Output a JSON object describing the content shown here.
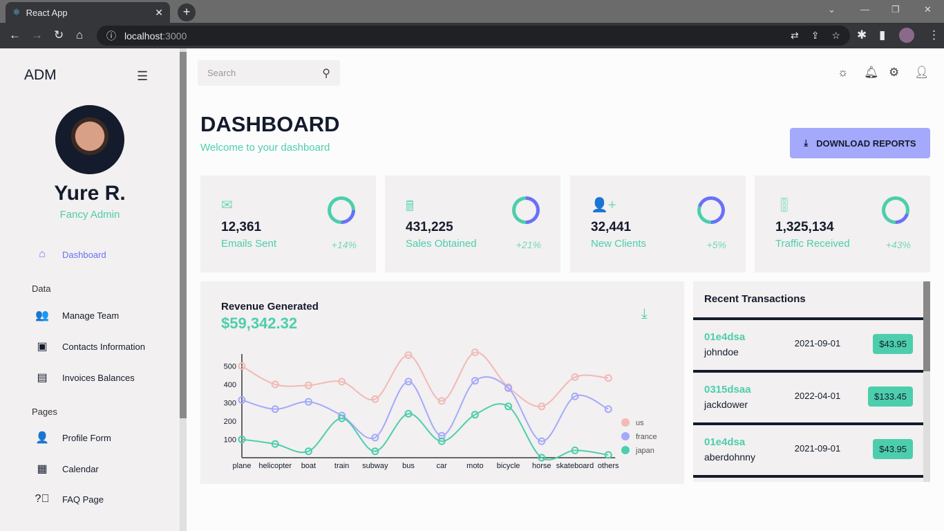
{
  "browser": {
    "tab_title": "React App",
    "url_host": "localhost",
    "url_port": ":3000"
  },
  "sidebar": {
    "logo": "ADM",
    "user_name": "Yure R.",
    "user_role": "Fancy Admin",
    "items": [
      {
        "label": "Dashboard",
        "icon": "home-icon"
      }
    ],
    "sections": [
      {
        "title": "Data",
        "items": [
          {
            "label": "Manage Team",
            "icon": "people-icon"
          },
          {
            "label": "Contacts Information",
            "icon": "contacts-icon"
          },
          {
            "label": "Invoices Balances",
            "icon": "receipt-icon"
          }
        ]
      },
      {
        "title": "Pages",
        "items": [
          {
            "label": "Profile Form",
            "icon": "person-icon"
          },
          {
            "label": "Calendar",
            "icon": "calendar-icon"
          },
          {
            "label": "FAQ Page",
            "icon": "help-icon"
          }
        ]
      }
    ]
  },
  "topbar": {
    "search_placeholder": "Search"
  },
  "header": {
    "title": "DASHBOARD",
    "subtitle": "Welcome to your dashboard",
    "download_label": "DOWNLOAD REPORTS"
  },
  "stats": [
    {
      "value": "12,361",
      "label": "Emails Sent",
      "increase": "+14%",
      "progress": 0.75
    },
    {
      "value": "431,225",
      "label": "Sales Obtained",
      "increase": "+21%",
      "progress": 0.5
    },
    {
      "value": "32,441",
      "label": "New Clients",
      "increase": "+5%",
      "progress": 0.3
    },
    {
      "value": "1,325,134",
      "label": "Traffic Received",
      "increase": "+43%",
      "progress": 0.8
    }
  ],
  "revenue": {
    "title": "Revenue Generated",
    "value": "$59,342.32"
  },
  "chart_data": {
    "type": "line",
    "categories": [
      "plane",
      "helicopter",
      "boat",
      "train",
      "subway",
      "bus",
      "car",
      "moto",
      "bicycle",
      "horse",
      "skateboard",
      "others"
    ],
    "yticks": [
      100,
      200,
      300,
      400,
      500
    ],
    "ylim": [
      0,
      570
    ],
    "legend_position": "right",
    "series": [
      {
        "name": "us",
        "color": "#f1b9b7",
        "values": [
          500,
          400,
          395,
          415,
          320,
          560,
          310,
          575,
          385,
          280,
          440,
          435
        ]
      },
      {
        "name": "france",
        "color": "#a4a9fc",
        "values": [
          315,
          265,
          305,
          230,
          110,
          415,
          120,
          420,
          380,
          90,
          335,
          265
        ]
      },
      {
        "name": "japan",
        "color": "#4cceac",
        "values": [
          100,
          75,
          35,
          215,
          35,
          240,
          90,
          235,
          280,
          0,
          40,
          15
        ]
      }
    ]
  },
  "transactions": {
    "title": "Recent Transactions",
    "rows": [
      {
        "id": "01e4dsa",
        "user": "johndoe",
        "date": "2021-09-01",
        "cost": "$43.95"
      },
      {
        "id": "0315dsaa",
        "user": "jackdower",
        "date": "2022-04-01",
        "cost": "$133.45"
      },
      {
        "id": "01e4dsa",
        "user": "aberdohnny",
        "date": "2021-09-01",
        "cost": "$43.95"
      }
    ]
  }
}
